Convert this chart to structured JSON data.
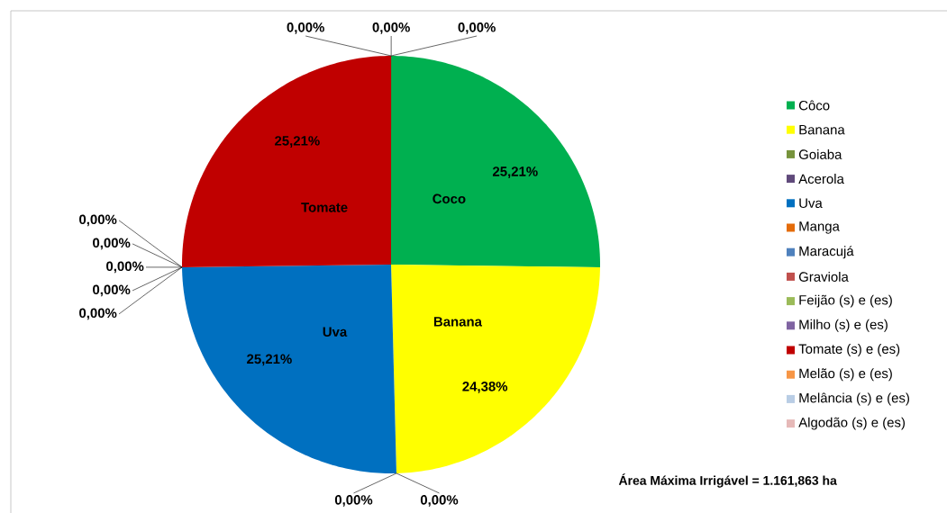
{
  "chart_data": {
    "type": "pie",
    "categories": [
      "Côco",
      "Banana",
      "Goiaba",
      "Acerola",
      "Uva",
      "Manga",
      "Maracujá",
      "Graviola",
      "Feijão (s) e (es)",
      "Milho (s) e (es)",
      "Tomate (s) e (es)",
      "Melão (s) e (es)",
      "Melância (s) e (es)",
      "Algodão (s) e (es)"
    ],
    "values": [
      25.21,
      24.38,
      0,
      0,
      25.21,
      0,
      0,
      0,
      0,
      0,
      25.21,
      0,
      0,
      0
    ],
    "value_labels": [
      "25,21%",
      "24,38%",
      "0,00%",
      "0,00%",
      "25,21%",
      "0,00%",
      "0,00%",
      "0,00%",
      "0,00%",
      "0,00%",
      "25,21%",
      "0,00%",
      "0,00%",
      "0,00%"
    ],
    "colors": [
      "#00b050",
      "#ffff00",
      "#77933c",
      "#604a7b",
      "#0070c0",
      "#e46c0a",
      "#4f81bd",
      "#c0504d",
      "#9bbb59",
      "#8064a2",
      "#c00000",
      "#f79646",
      "#b9cde5",
      "#e6b9b8"
    ],
    "legend": "right",
    "annotations": [
      {
        "text": "Coco",
        "x": "Côco"
      },
      {
        "text": "Banana",
        "x": "Banana"
      },
      {
        "text": "Uva",
        "x": "Uva"
      },
      {
        "text": "Tomate",
        "x": "Tomate (s) e (es)"
      },
      "Área Máxima Irrigável = 1.161,863 ha"
    ]
  }
}
